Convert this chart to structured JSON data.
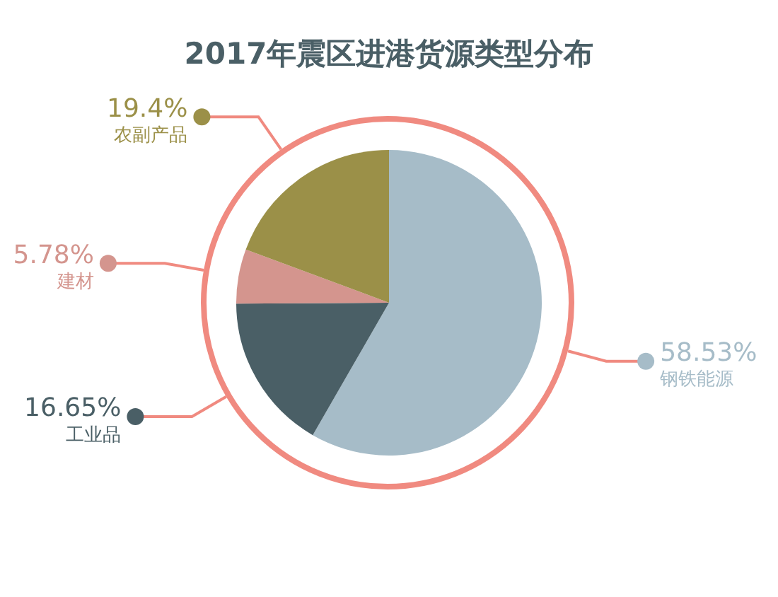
{
  "chart_data": {
    "type": "pie",
    "title": "2017年震区进港货源类型分布",
    "categories": [
      "钢铁能源",
      "工业品",
      "建材",
      "农副产品"
    ],
    "values": [
      58.53,
      16.65,
      5.78,
      19.4
    ],
    "colors": [
      "#a6bcc8",
      "#4a5f66",
      "#d4958e",
      "#9b9048"
    ],
    "value_labels": [
      "58.53%",
      "16.65%",
      "5.78%",
      "19.4%"
    ],
    "legend": "left"
  }
}
